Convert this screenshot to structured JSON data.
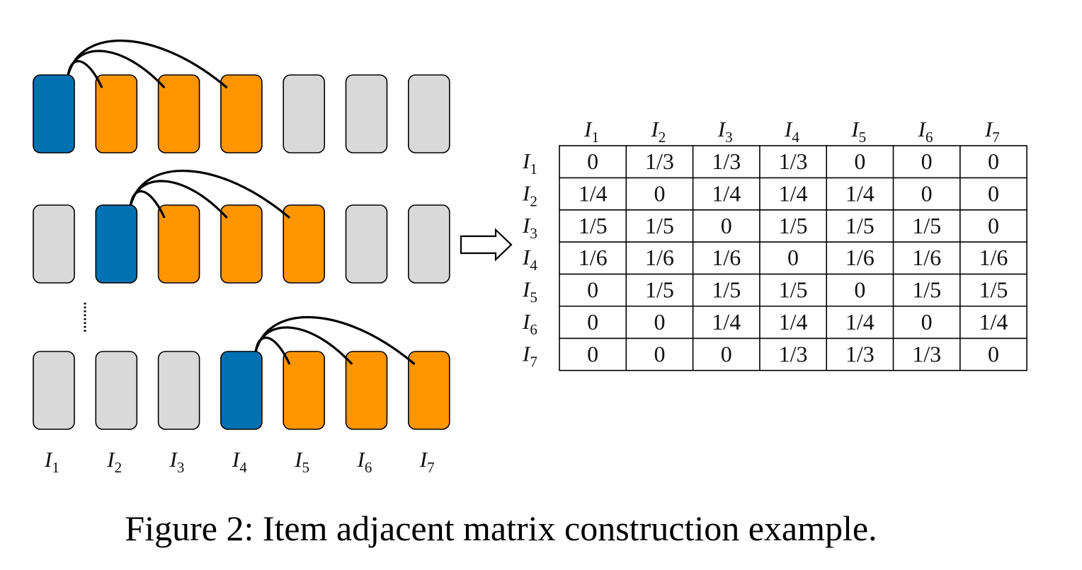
{
  "caption": "Figure 2: Item adjacent matrix construction example.",
  "colors": {
    "center_item": "#0072b2",
    "neighbor_item": "#ff9500",
    "other_item": "#d9d9d9",
    "stroke": "#000000"
  },
  "items": [
    {
      "base": "I",
      "sub": "1"
    },
    {
      "base": "I",
      "sub": "2"
    },
    {
      "base": "I",
      "sub": "3"
    },
    {
      "base": "I",
      "sub": "4"
    },
    {
      "base": "I",
      "sub": "5"
    },
    {
      "base": "I",
      "sub": "6"
    },
    {
      "base": "I",
      "sub": "7"
    }
  ],
  "sequence_rows": [
    {
      "states": [
        "center",
        "neighbor",
        "neighbor",
        "neighbor",
        "other",
        "other",
        "other"
      ],
      "center": 0,
      "links": [
        1,
        2,
        3
      ]
    },
    {
      "states": [
        "other",
        "center",
        "neighbor",
        "neighbor",
        "neighbor",
        "other",
        "other"
      ],
      "center": 1,
      "links": [
        2,
        3,
        4
      ]
    },
    {
      "states": [
        "other",
        "other",
        "other",
        "center",
        "neighbor",
        "neighbor",
        "neighbor"
      ],
      "center": 3,
      "links": [
        4,
        5,
        6
      ]
    }
  ],
  "ellipsis_icon": "vertical-dotted-ellipsis",
  "arrow_icon": "hollow-right-arrow",
  "matrix": [
    [
      "0",
      "1/3",
      "1/3",
      "1/3",
      "0",
      "0",
      "0"
    ],
    [
      "1/4",
      "0",
      "1/4",
      "1/4",
      "1/4",
      "0",
      "0"
    ],
    [
      "1/5",
      "1/5",
      "0",
      "1/5",
      "1/5",
      "1/5",
      "0"
    ],
    [
      "1/6",
      "1/6",
      "1/6",
      "0",
      "1/6",
      "1/6",
      "1/6"
    ],
    [
      "0",
      "1/5",
      "1/5",
      "1/5",
      "0",
      "1/5",
      "1/5"
    ],
    [
      "0",
      "0",
      "1/4",
      "1/4",
      "1/4",
      "0",
      "1/4"
    ],
    [
      "0",
      "0",
      "0",
      "1/3",
      "1/3",
      "1/3",
      "0"
    ]
  ]
}
